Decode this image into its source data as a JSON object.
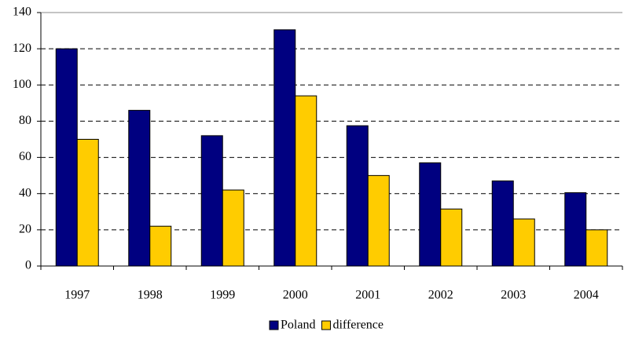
{
  "chart_data": {
    "type": "bar",
    "categories": [
      "1997",
      "1998",
      "1999",
      "2000",
      "2001",
      "2002",
      "2003",
      "2004"
    ],
    "series": [
      {
        "name": "Poland",
        "color": "#000080",
        "values": [
          120,
          86,
          72,
          130.5,
          77.5,
          57,
          47,
          40.5
        ]
      },
      {
        "name": "difference",
        "color": "#ffcc00",
        "values": [
          70,
          22,
          42,
          94,
          50,
          31.5,
          26,
          20
        ]
      }
    ],
    "ylim": [
      0,
      140
    ],
    "yticks": [
      0,
      20,
      40,
      60,
      80,
      100,
      120,
      140
    ],
    "grid": true,
    "legend": "bottom"
  }
}
